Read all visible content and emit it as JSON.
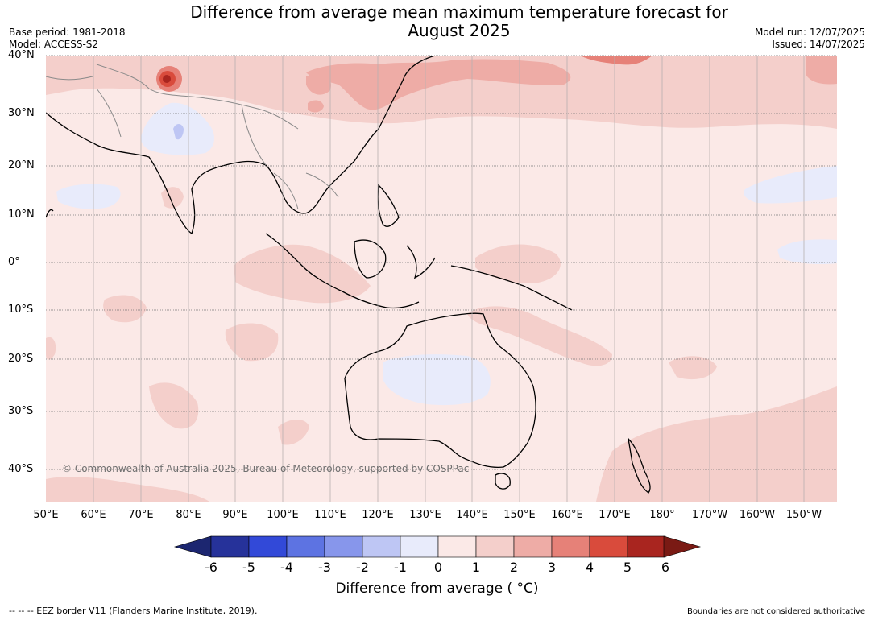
{
  "title_line1": "Difference from average mean maximum temperature forecast for",
  "title_line2": "August 2025",
  "meta_left": {
    "base_period": "Base period: 1981-2018",
    "model": "Model: ACCESS-S2"
  },
  "meta_right": {
    "model_run": "Model run: 12/07/2025",
    "issued": "Issued: 14/07/2025"
  },
  "lat_labels": [
    "40°N",
    "30°N",
    "20°N",
    "10°N",
    "0°",
    "10°S",
    "20°S",
    "30°S",
    "40°S"
  ],
  "lon_labels": [
    "50°E",
    "60°E",
    "70°E",
    "80°E",
    "90°E",
    "100°E",
    "110°E",
    "120°E",
    "130°E",
    "140°E",
    "150°E",
    "160°E",
    "170°E",
    "180°",
    "170°W",
    "160°W",
    "150°W"
  ],
  "copyright": "© Commonwealth of Australia 2025, Bureau of Meteorology, supported by COSPPac",
  "colorbar": {
    "ticks": [
      "-6",
      "-5",
      "-4",
      "-3",
      "-2",
      "-1",
      "0",
      "1",
      "2",
      "3",
      "4",
      "5",
      "6"
    ],
    "colors": [
      "#26329a",
      "#3249d8",
      "#5d73e2",
      "#8796eb",
      "#bec6f4",
      "#e8ebfb",
      "#fbe9e7",
      "#f4cfcb",
      "#eeaca6",
      "#e68178",
      "#d94b3c",
      "#a9251f"
    ],
    "extend_low": "#1c2670",
    "extend_high": "#7a1a14",
    "title": "Difference from average ( °C)"
  },
  "footer_left": "--  --  -- EEZ border V11 (Flanders Marine Institute, 2019).",
  "footer_right": "Boundaries are not considered authoritative"
}
